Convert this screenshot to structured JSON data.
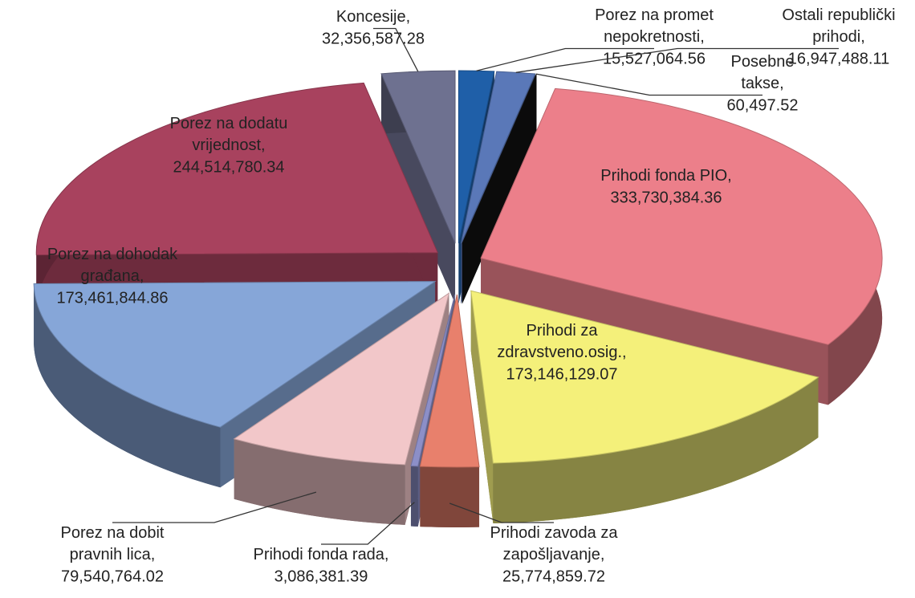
{
  "chart_data": {
    "type": "pie",
    "categories": [
      "Porez na promet nepokretnosti,",
      "Ostali republički prihodi,",
      "Posebne takse,",
      "Prihodi fonda PIO,",
      "Prihodi za zdravstveno.osig.,",
      "Prihodi zavoda za zapošljavanje,",
      "Prihodi fonda rada,",
      "Porez na dobit pravnih lica,",
      "Porez na dohodak građana,",
      "Porez na dodatu vrijednost,",
      "Koncesije,"
    ],
    "values": [
      15527064.56,
      16947488.11,
      60497.52,
      333730384.36,
      173146129.07,
      25774859.72,
      3086381.39,
      79540764.02,
      173461844.86,
      244514780.34,
      32356587.28
    ],
    "value_labels": [
      "15,527,064.56",
      "16,947,488.11",
      "60,497.52",
      "333,730,384.36",
      "173,146,129.07",
      "25,774,859.72",
      "3,086,381.39",
      "79,540,764.02",
      "173,461,844.86",
      "244,514,780.34",
      "32,356,587.28"
    ],
    "colors": [
      "#1f5fa8",
      "#5a78b8",
      "#111111",
      "#ec7f8a",
      "#f4f07a",
      "#e8806c",
      "#8c8fc8",
      "#f2c7c9",
      "#86a6d8",
      "#a8425e",
      "#6e7190"
    ]
  }
}
